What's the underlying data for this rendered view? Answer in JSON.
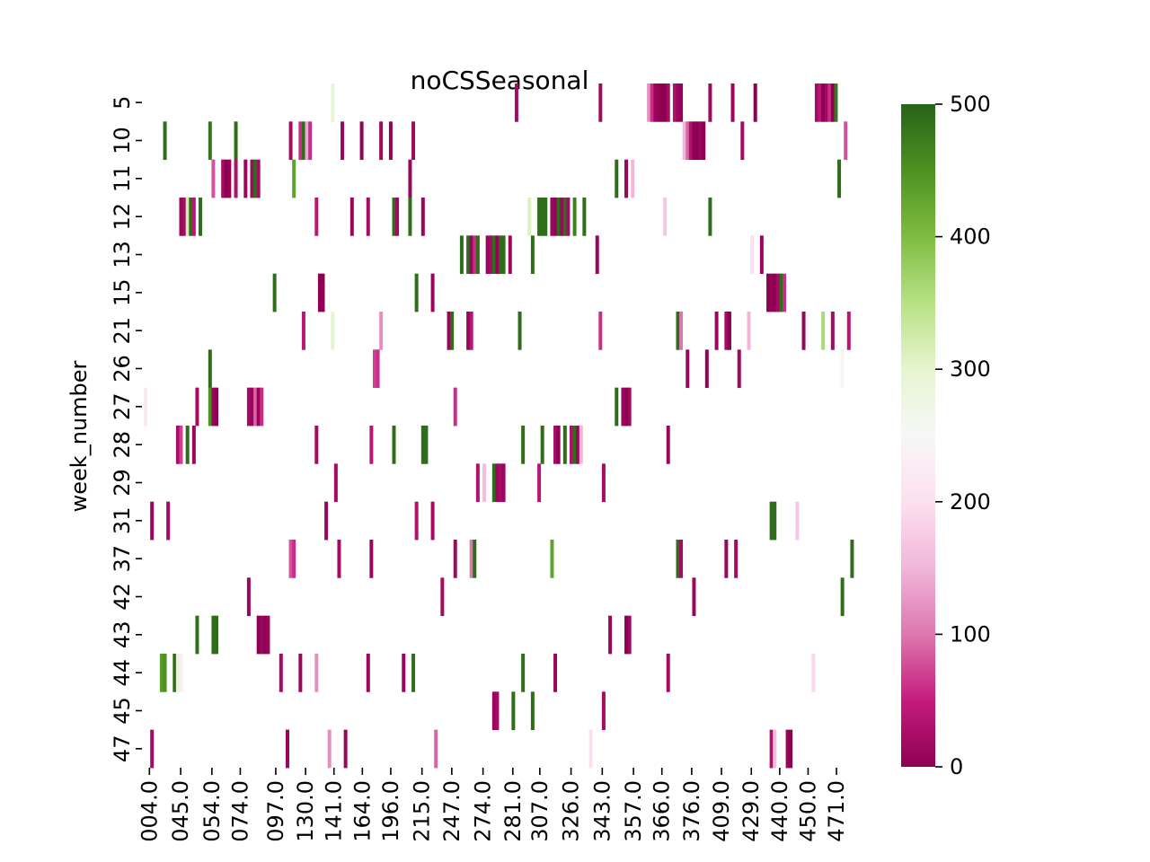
{
  "chart_data": {
    "type": "heatmap",
    "title": "noCSSeasonal",
    "ylabel": "week_number",
    "xlabel": "",
    "y_categories": [
      "5",
      "10",
      "11",
      "12",
      "13",
      "15",
      "21",
      "26",
      "27",
      "28",
      "29",
      "31",
      "37",
      "42",
      "43",
      "44",
      "45",
      "47"
    ],
    "x_tick_labels": [
      "004.0",
      "045.0",
      "054.0",
      "074.0",
      "097.0",
      "130.0",
      "141.0",
      "164.0",
      "196.0",
      "215.0",
      "247.0",
      "274.0",
      "281.0",
      "307.0",
      "326.0",
      "343.0",
      "357.0",
      "366.0",
      "376.0",
      "409.0",
      "429.0",
      "440.0",
      "450.0",
      "471.0"
    ],
    "x_tick_fractions": [
      0.008,
      0.052,
      0.096,
      0.136,
      0.186,
      0.228,
      0.268,
      0.308,
      0.348,
      0.392,
      0.434,
      0.478,
      0.52,
      0.558,
      0.602,
      0.646,
      0.69,
      0.73,
      0.772,
      0.814,
      0.856,
      0.896,
      0.936,
      0.976
    ],
    "column_count": 220,
    "colorbar": {
      "vmin": 0,
      "vmax": 500,
      "ticks": [
        "0",
        "100",
        "200",
        "300",
        "400",
        "500"
      ],
      "colormap": "PiYG",
      "stops": [
        [
          0.0,
          "#8e0152"
        ],
        [
          0.1,
          "#c51b7d"
        ],
        [
          0.2,
          "#de77ae"
        ],
        [
          0.3,
          "#f1b6da"
        ],
        [
          0.4,
          "#fde0ef"
        ],
        [
          0.5,
          "#f7f7f7"
        ],
        [
          0.6,
          "#e6f5d0"
        ],
        [
          0.7,
          "#b8e186"
        ],
        [
          0.8,
          "#7fbc41"
        ],
        [
          0.9,
          "#4d9221"
        ],
        [
          1.0,
          "#276419"
        ]
      ]
    },
    "cells": [
      [
        0,
        58,
        290
      ],
      [
        0,
        115,
        20
      ],
      [
        0,
        141,
        15
      ],
      [
        0,
        156,
        120
      ],
      [
        0,
        157,
        60
      ],
      [
        0,
        158,
        10
      ],
      [
        0,
        159,
        5
      ],
      [
        0,
        160,
        0
      ],
      [
        0,
        161,
        0
      ],
      [
        0,
        162,
        20
      ],
      [
        0,
        164,
        30
      ],
      [
        0,
        165,
        10
      ],
      [
        0,
        166,
        5
      ],
      [
        0,
        175,
        15
      ],
      [
        0,
        182,
        10
      ],
      [
        0,
        189,
        0
      ],
      [
        0,
        208,
        20
      ],
      [
        0,
        209,
        40
      ],
      [
        0,
        210,
        0
      ],
      [
        0,
        211,
        15
      ],
      [
        0,
        212,
        60
      ],
      [
        0,
        213,
        0
      ],
      [
        0,
        214,
        480
      ],
      [
        1,
        6,
        490
      ],
      [
        1,
        20,
        480
      ],
      [
        1,
        28,
        490
      ],
      [
        1,
        45,
        20
      ],
      [
        1,
        48,
        60
      ],
      [
        1,
        49,
        490
      ],
      [
        1,
        50,
        140
      ],
      [
        1,
        51,
        60
      ],
      [
        1,
        61,
        10
      ],
      [
        1,
        67,
        5
      ],
      [
        1,
        73,
        15
      ],
      [
        1,
        76,
        5
      ],
      [
        1,
        83,
        15
      ],
      [
        1,
        167,
        150
      ],
      [
        1,
        168,
        90
      ],
      [
        1,
        169,
        30
      ],
      [
        1,
        170,
        0
      ],
      [
        1,
        171,
        0
      ],
      [
        1,
        172,
        10
      ],
      [
        1,
        173,
        0
      ],
      [
        1,
        185,
        20
      ],
      [
        1,
        217,
        80
      ],
      [
        2,
        21,
        80
      ],
      [
        2,
        24,
        20
      ],
      [
        2,
        25,
        0
      ],
      [
        2,
        26,
        5
      ],
      [
        2,
        28,
        30
      ],
      [
        2,
        31,
        10
      ],
      [
        2,
        33,
        15
      ],
      [
        2,
        34,
        490
      ],
      [
        2,
        35,
        20
      ],
      [
        2,
        46,
        430
      ],
      [
        2,
        82,
        10
      ],
      [
        2,
        146,
        490
      ],
      [
        2,
        149,
        10
      ],
      [
        2,
        151,
        150
      ],
      [
        2,
        215,
        490
      ],
      [
        3,
        11,
        10
      ],
      [
        3,
        12,
        20
      ],
      [
        3,
        13,
        320
      ],
      [
        3,
        14,
        490
      ],
      [
        3,
        15,
        40
      ],
      [
        3,
        17,
        490
      ],
      [
        3,
        53,
        40
      ],
      [
        3,
        64,
        10
      ],
      [
        3,
        69,
        20
      ],
      [
        3,
        77,
        490
      ],
      [
        3,
        78,
        15
      ],
      [
        3,
        82,
        490
      ],
      [
        3,
        86,
        10
      ],
      [
        3,
        119,
        310
      ],
      [
        3,
        122,
        490
      ],
      [
        3,
        123,
        490
      ],
      [
        3,
        124,
        490
      ],
      [
        3,
        126,
        10
      ],
      [
        3,
        127,
        5
      ],
      [
        3,
        128,
        490
      ],
      [
        3,
        129,
        10
      ],
      [
        3,
        130,
        490
      ],
      [
        3,
        131,
        20
      ],
      [
        3,
        133,
        470
      ],
      [
        3,
        136,
        490
      ],
      [
        3,
        161,
        170
      ],
      [
        3,
        175,
        490
      ],
      [
        4,
        98,
        490
      ],
      [
        4,
        100,
        490
      ],
      [
        4,
        101,
        10
      ],
      [
        4,
        102,
        60
      ],
      [
        4,
        103,
        490
      ],
      [
        4,
        106,
        10
      ],
      [
        4,
        107,
        20
      ],
      [
        4,
        108,
        490
      ],
      [
        4,
        109,
        5
      ],
      [
        4,
        110,
        490
      ],
      [
        4,
        111,
        490
      ],
      [
        4,
        113,
        10
      ],
      [
        4,
        120,
        490
      ],
      [
        4,
        140,
        10
      ],
      [
        4,
        188,
        200
      ],
      [
        4,
        191,
        10
      ],
      [
        5,
        40,
        490
      ],
      [
        5,
        54,
        0
      ],
      [
        5,
        55,
        0
      ],
      [
        5,
        84,
        490
      ],
      [
        5,
        89,
        10
      ],
      [
        5,
        193,
        0
      ],
      [
        5,
        194,
        5
      ],
      [
        5,
        195,
        0
      ],
      [
        5,
        196,
        20
      ],
      [
        5,
        197,
        490
      ],
      [
        5,
        198,
        60
      ],
      [
        6,
        49,
        40
      ],
      [
        6,
        58,
        300
      ],
      [
        6,
        73,
        120
      ],
      [
        6,
        94,
        10
      ],
      [
        6,
        95,
        490
      ],
      [
        6,
        100,
        10
      ],
      [
        6,
        101,
        40
      ],
      [
        6,
        116,
        490
      ],
      [
        6,
        141,
        60
      ],
      [
        6,
        165,
        490
      ],
      [
        6,
        166,
        100
      ],
      [
        6,
        177,
        10
      ],
      [
        6,
        180,
        20
      ],
      [
        6,
        181,
        0
      ],
      [
        6,
        187,
        150
      ],
      [
        6,
        204,
        10
      ],
      [
        6,
        210,
        360
      ],
      [
        6,
        213,
        20
      ],
      [
        6,
        218,
        40
      ],
      [
        7,
        20,
        490
      ],
      [
        7,
        71,
        70
      ],
      [
        7,
        72,
        60
      ],
      [
        7,
        168,
        10
      ],
      [
        7,
        174,
        5
      ],
      [
        7,
        184,
        15
      ],
      [
        7,
        216,
        260
      ],
      [
        8,
        0,
        220
      ],
      [
        8,
        16,
        20
      ],
      [
        8,
        20,
        450
      ],
      [
        8,
        21,
        10
      ],
      [
        8,
        22,
        0
      ],
      [
        8,
        32,
        20
      ],
      [
        8,
        33,
        10
      ],
      [
        8,
        34,
        90
      ],
      [
        8,
        35,
        10
      ],
      [
        8,
        36,
        60
      ],
      [
        8,
        96,
        60
      ],
      [
        8,
        146,
        490
      ],
      [
        8,
        148,
        10
      ],
      [
        8,
        149,
        0
      ],
      [
        8,
        150,
        15
      ],
      [
        9,
        10,
        20
      ],
      [
        9,
        11,
        70
      ],
      [
        9,
        13,
        490
      ],
      [
        9,
        15,
        10
      ],
      [
        9,
        53,
        20
      ],
      [
        9,
        70,
        40
      ],
      [
        9,
        77,
        490
      ],
      [
        9,
        86,
        490
      ],
      [
        9,
        87,
        490
      ],
      [
        9,
        117,
        490
      ],
      [
        9,
        123,
        490
      ],
      [
        9,
        127,
        20
      ],
      [
        9,
        128,
        0
      ],
      [
        9,
        130,
        490
      ],
      [
        9,
        132,
        30
      ],
      [
        9,
        133,
        490
      ],
      [
        9,
        134,
        10
      ],
      [
        9,
        135,
        150
      ],
      [
        9,
        162,
        10
      ],
      [
        10,
        59,
        20
      ],
      [
        10,
        103,
        30
      ],
      [
        10,
        105,
        160
      ],
      [
        10,
        108,
        490
      ],
      [
        10,
        109,
        10
      ],
      [
        10,
        110,
        20
      ],
      [
        10,
        111,
        10
      ],
      [
        10,
        122,
        40
      ],
      [
        10,
        142,
        20
      ],
      [
        11,
        2,
        10
      ],
      [
        11,
        7,
        20
      ],
      [
        11,
        56,
        10
      ],
      [
        11,
        84,
        30
      ],
      [
        11,
        89,
        20
      ],
      [
        11,
        194,
        490
      ],
      [
        11,
        195,
        490
      ],
      [
        11,
        202,
        170
      ],
      [
        12,
        45,
        80
      ],
      [
        12,
        46,
        60
      ],
      [
        12,
        60,
        20
      ],
      [
        12,
        70,
        10
      ],
      [
        12,
        96,
        15
      ],
      [
        12,
        101,
        100
      ],
      [
        12,
        102,
        490
      ],
      [
        12,
        126,
        430
      ],
      [
        12,
        165,
        490
      ],
      [
        12,
        166,
        20
      ],
      [
        12,
        180,
        10
      ],
      [
        12,
        183,
        20
      ],
      [
        12,
        219,
        490
      ],
      [
        13,
        32,
        10
      ],
      [
        13,
        92,
        20
      ],
      [
        13,
        170,
        10
      ],
      [
        13,
        216,
        490
      ],
      [
        14,
        16,
        490
      ],
      [
        14,
        21,
        490
      ],
      [
        14,
        22,
        490
      ],
      [
        14,
        35,
        0
      ],
      [
        14,
        36,
        10
      ],
      [
        14,
        37,
        0
      ],
      [
        14,
        38,
        10
      ],
      [
        14,
        144,
        10
      ],
      [
        14,
        149,
        0
      ],
      [
        14,
        150,
        15
      ],
      [
        15,
        5,
        440
      ],
      [
        15,
        6,
        450
      ],
      [
        15,
        9,
        490
      ],
      [
        15,
        10,
        290
      ],
      [
        15,
        11,
        230
      ],
      [
        15,
        42,
        20
      ],
      [
        15,
        48,
        10
      ],
      [
        15,
        53,
        120
      ],
      [
        15,
        69,
        10
      ],
      [
        15,
        80,
        10
      ],
      [
        15,
        83,
        490
      ],
      [
        15,
        117,
        490
      ],
      [
        15,
        127,
        10
      ],
      [
        15,
        162,
        20
      ],
      [
        15,
        207,
        190
      ],
      [
        16,
        108,
        10
      ],
      [
        16,
        109,
        20
      ],
      [
        16,
        114,
        490
      ],
      [
        16,
        120,
        490
      ],
      [
        16,
        142,
        20
      ],
      [
        17,
        2,
        20
      ],
      [
        17,
        44,
        10
      ],
      [
        17,
        57,
        120
      ],
      [
        17,
        62,
        10
      ],
      [
        17,
        90,
        90
      ],
      [
        17,
        138,
        200
      ],
      [
        17,
        194,
        30
      ],
      [
        17,
        195,
        160
      ],
      [
        17,
        199,
        10
      ],
      [
        17,
        200,
        0
      ]
    ]
  }
}
